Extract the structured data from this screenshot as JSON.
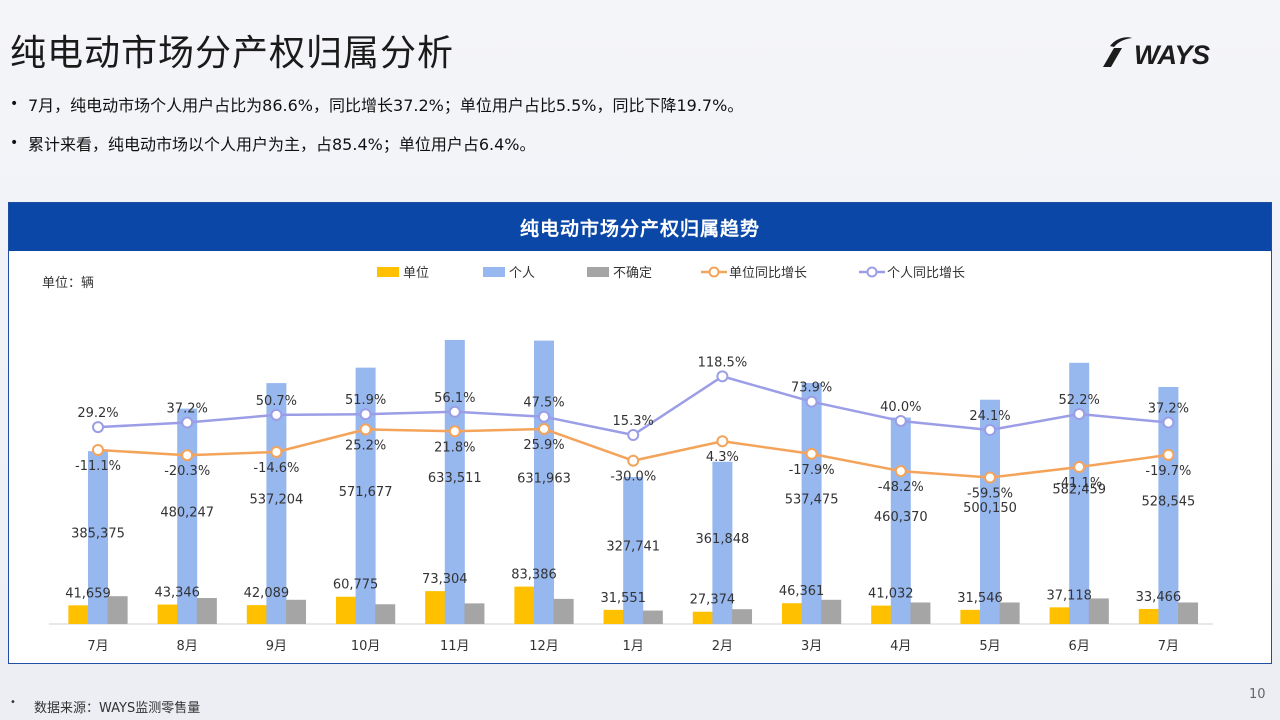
{
  "page": {
    "title": "纯电动市场分产权归属分析",
    "logo_text": "WAYS",
    "bullets": [
      "7月，纯电动市场个人用户占比为86.6%，同比增长37.2%；单位用户占比5.5%，同比下降19.7%。",
      "累计来看，纯电动市场以个人用户为主，占85.4%；单位用户占6.4%。"
    ],
    "bullet_icon": "•",
    "footer_icon": "•",
    "footer": "数据来源：WAYS监测零售量",
    "page_number": "10"
  },
  "chart_data": {
    "type": "bar",
    "title": "纯电动市场分产权归属趋势",
    "unit_label": "单位：辆",
    "categories": [
      "7月",
      "8月",
      "9月",
      "10月",
      "11月",
      "12月",
      "1月",
      "2月",
      "3月",
      "4月",
      "5月",
      "6月",
      "7月"
    ],
    "series": [
      {
        "name": "单位",
        "kind": "bar",
        "color": "#ffc000",
        "values": [
          41659,
          43346,
          42089,
          60775,
          73304,
          83386,
          31551,
          27374,
          46361,
          41032,
          31546,
          37118,
          33466
        ],
        "labels": [
          "41,659",
          "43,346",
          "42,089",
          "60,775",
          "73,304",
          "83,386",
          "31,551",
          "27,374",
          "46,361",
          "41,032",
          "31,546",
          "37,118",
          "33,466"
        ]
      },
      {
        "name": "个人",
        "kind": "bar",
        "color": "#97b7ef",
        "values": [
          385375,
          480247,
          537204,
          571677,
          633511,
          631963,
          327741,
          361848,
          537475,
          460370,
          500150,
          582459,
          528545
        ],
        "labels": [
          "385,375",
          "480,247",
          "537,204",
          "571,677",
          "633,511",
          "631,963",
          "327,741",
          "361,848",
          "537,475",
          "460,370",
          "500,150",
          "582,459",
          "528,545"
        ]
      },
      {
        "name": "不确定",
        "kind": "bar",
        "color": "#a5a5a5",
        "values": [
          62000,
          58000,
          54000,
          44000,
          46000,
          56000,
          30000,
          33000,
          54000,
          48000,
          48000,
          57000,
          48000
        ],
        "labels": null
      },
      {
        "name": "单位同比增长",
        "kind": "line",
        "color": "#f4a45a",
        "values": [
          -11.1,
          -20.3,
          -14.6,
          25.2,
          21.8,
          25.9,
          -30.0,
          4.3,
          -17.9,
          -48.2,
          -59.5,
          -41.1,
          -19.7
        ],
        "labels": [
          "-11.1%",
          "-20.3%",
          "-14.6%",
          "25.2%",
          "21.8%",
          "25.9%",
          "-30.0%",
          "4.3%",
          "-17.9%",
          "-48.2%",
          "-59.5%",
          "-41.1%",
          "-19.7%"
        ]
      },
      {
        "name": "个人同比增长",
        "kind": "line",
        "color": "#9b9ee6",
        "values": [
          29.2,
          37.2,
          50.7,
          51.9,
          56.1,
          47.5,
          15.3,
          118.5,
          73.9,
          40.0,
          24.1,
          52.2,
          37.2
        ],
        "labels": [
          "29.2%",
          "37.2%",
          "50.7%",
          "51.9%",
          "56.1%",
          "47.5%",
          "15.3%",
          "118.5%",
          "73.9%",
          "40.0%",
          "24.1%",
          "52.2%",
          "37.2%"
        ]
      }
    ],
    "bar_ylim": [
      0,
      640000
    ],
    "line_ylim": [
      -210,
      230
    ],
    "grid": false,
    "legend_position": "top-center",
    "colors": {
      "header_bg": "#0b47a6",
      "axis": "#d0d0d0",
      "label": "#333333"
    }
  }
}
